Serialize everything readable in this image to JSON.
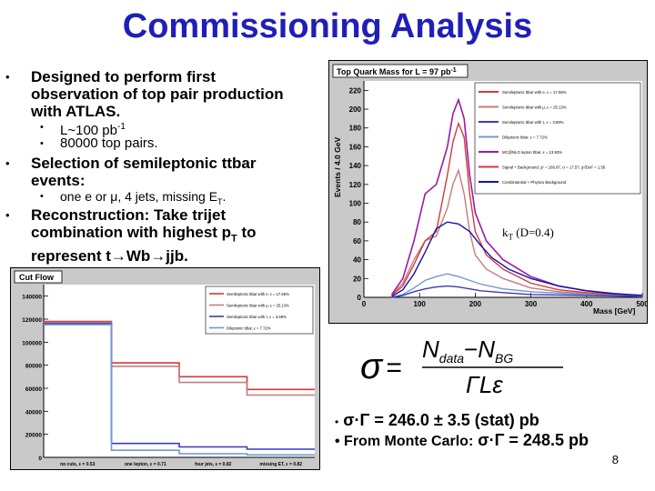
{
  "slide": {
    "title": "Commissioning Analysis",
    "page_number": "8",
    "bullets": [
      {
        "text_lines": [
          "Designed to perform first",
          "observation of top pair production",
          "with ATLAS."
        ]
      },
      {
        "sub": [
          "L~100 pb-1",
          "80000 top pairs."
        ]
      },
      {
        "text_lines": [
          "Selection of semileptonic ttbar",
          "events:"
        ]
      },
      {
        "sub": [
          "one e or μ, 4 jets, missing ET."
        ]
      },
      {
        "text_lines": [
          "Reconstruction: Take trijet",
          "combination with highest pT to",
          "represent t→Wb→jjb."
        ]
      }
    ],
    "kt_label": "kT (D=0.4)",
    "formula": {
      "lhs": "σ",
      "num_a": "N",
      "num_a_sub": "data",
      "minus": "−",
      "num_b": "N",
      "num_b_sub": "BG",
      "den": "ΓLε"
    },
    "result1_prefix": "•",
    "result1": "σ·Γ = 246.0 ± 3.5 (stat) pb",
    "result2_prefix": "• From Monte Carlo:",
    "result2": "σ·Γ = 248.5 pb"
  },
  "chart_data": [
    {
      "type": "line",
      "title": "Top Quark Mass for L = 97 pb-1",
      "xlabel": "Mass [GeV]",
      "ylabel": "Events / 4.0 GeV",
      "xlim": [
        0,
        500
      ],
      "ylim": [
        0,
        230
      ],
      "xticks": [
        "0",
        "100",
        "200",
        "300",
        "400",
        "500"
      ],
      "yticks": [
        "0",
        "20",
        "40",
        "60",
        "80",
        "100",
        "120",
        "140",
        "160",
        "180",
        "200",
        "220"
      ],
      "legend_position": "top-right",
      "legend": [
        "Semileptonic ttbar with e, ε = 17.55%",
        "Semileptonic ttbar with μ, ε = 25.13%",
        "Semileptonic ttbar with τ, ε = 3.69%",
        "Dileptonic ttbar, ε = 7.72%",
        "MC@NLO lepton ttbar, ε = 13.93%",
        "Signal + Background, χ² = 166.87, σ = 17.57, χ²/DoF = 1.56",
        "Combinatorial + Physics Background"
      ],
      "series": [
        {
          "name": "Semileptonic ttbar with μ",
          "color": "#c47c7c",
          "x": [
            50,
            70,
            90,
            110,
            130,
            150,
            160,
            170,
            180,
            190,
            200,
            220,
            250,
            300,
            350,
            400,
            450,
            500
          ],
          "values": [
            2,
            15,
            40,
            60,
            65,
            95,
            120,
            135,
            110,
            70,
            45,
            30,
            20,
            10,
            6,
            4,
            2,
            1
          ]
        },
        {
          "name": "Semileptonic ttbar with e",
          "color": "#d13b3b",
          "x": [
            50,
            70,
            90,
            110,
            130,
            150,
            160,
            170,
            180,
            190,
            200,
            220,
            250,
            300,
            350,
            400,
            450,
            500
          ],
          "values": [
            2,
            12,
            35,
            60,
            70,
            130,
            165,
            185,
            170,
            110,
            70,
            45,
            30,
            15,
            8,
            5,
            3,
            1
          ]
        },
        {
          "name": "Signal + Background",
          "color": "#9e1a9e",
          "x": [
            50,
            70,
            90,
            110,
            130,
            150,
            160,
            170,
            175,
            180,
            190,
            200,
            220,
            250,
            300,
            350,
            400,
            450,
            500
          ],
          "values": [
            3,
            20,
            60,
            110,
            120,
            160,
            195,
            210,
            200,
            190,
            130,
            90,
            60,
            40,
            22,
            12,
            7,
            4,
            2
          ]
        },
        {
          "name": "Combinatorial + Physics Background",
          "color": "#1414a0",
          "x": [
            50,
            70,
            90,
            110,
            130,
            150,
            170,
            190,
            210,
            230,
            260,
            300,
            350,
            400,
            450,
            500
          ],
          "values": [
            1,
            8,
            25,
            48,
            73,
            80,
            78,
            70,
            55,
            42,
            30,
            20,
            12,
            7,
            4,
            2
          ]
        },
        {
          "name": "Dileptonic ttbar",
          "color": "#6f9acf",
          "x": [
            50,
            70,
            90,
            110,
            130,
            150,
            170,
            190,
            210,
            250,
            300,
            400,
            500
          ],
          "values": [
            0,
            3,
            10,
            18,
            22,
            25,
            22,
            18,
            14,
            9,
            6,
            3,
            1
          ]
        },
        {
          "name": "Semileptonic ttbar with τ",
          "color": "#3a3ac0",
          "x": [
            50,
            70,
            90,
            110,
            130,
            150,
            170,
            190,
            210,
            250,
            300,
            400,
            500
          ],
          "values": [
            0,
            2,
            6,
            9,
            11,
            12,
            11,
            9,
            7,
            5,
            3,
            2,
            1
          ]
        }
      ]
    },
    {
      "type": "bar",
      "title": "Cut Flow",
      "categories": [
        "no cuts, ε = 0.53",
        "one lepton, ε = 0.71",
        "four jets, ε = 0.82",
        "missing ET, ε = 0.82"
      ],
      "ylim": [
        0,
        150000
      ],
      "yticks": [
        "0",
        "20000",
        "40000",
        "60000",
        "80000",
        "100000",
        "120000",
        "140000"
      ],
      "legend_position": "top-right",
      "legend": [
        "Semileptonic ttbar with e, ε = 17.55%",
        "Semileptonic ttbar with μ, ε = 25.13%",
        "Semileptonic ttbar with τ, ε = 3.69%",
        "Dileptonic ttbar, ε = 7.72%"
      ],
      "series": [
        {
          "name": "Semileptonic ttbar with e",
          "color": "#d13b3b",
          "values": [
            118000,
            82000,
            70000,
            59000
          ]
        },
        {
          "name": "Semileptonic ttbar with μ",
          "color": "#c47c7c",
          "values": [
            118000,
            80000,
            66000,
            55000
          ]
        },
        {
          "name": "Semileptonic ttbar with τ",
          "color": "#3a3ac0",
          "values": [
            118000,
            14000,
            11000,
            9000
          ]
        },
        {
          "name": "Dileptonic ttbar",
          "color": "#6f9acf",
          "values": [
            118000,
            9000,
            6000,
            5000
          ]
        }
      ]
    }
  ]
}
